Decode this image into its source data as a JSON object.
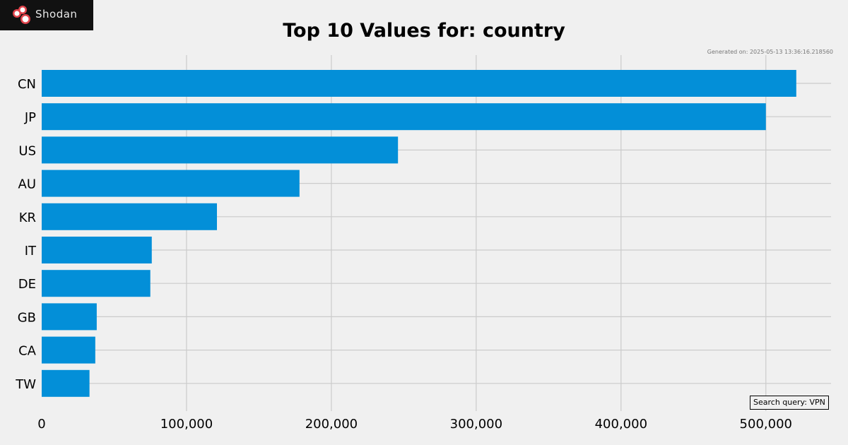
{
  "brand": {
    "name": "Shodan"
  },
  "generated_text": "Generated on: 2025-05-13 13:36:16.218560",
  "query_label": "Search query: VPN",
  "colors": {
    "bar": "#038fd8",
    "grid": "#cbcbcb",
    "background": "#f0f0f0",
    "logo_bg": "#111111",
    "logo_accent": "#e0434b"
  },
  "chart_data": {
    "type": "bar",
    "orientation": "horizontal",
    "title": "Top 10 Values for: country",
    "categories": [
      "CN",
      "JP",
      "US",
      "AU",
      "KR",
      "IT",
      "DE",
      "GB",
      "CA",
      "TW"
    ],
    "values": [
      521000,
      500000,
      246000,
      178000,
      121000,
      76000,
      75000,
      38000,
      37000,
      33000
    ],
    "xlim": [
      0,
      545000
    ],
    "xticks": [
      0,
      100000,
      200000,
      300000,
      400000,
      500000
    ],
    "xtick_labels": [
      "0",
      "100,000",
      "200,000",
      "300,000",
      "400,000",
      "500,000"
    ],
    "xlabel": "",
    "ylabel": "",
    "grid": true
  }
}
